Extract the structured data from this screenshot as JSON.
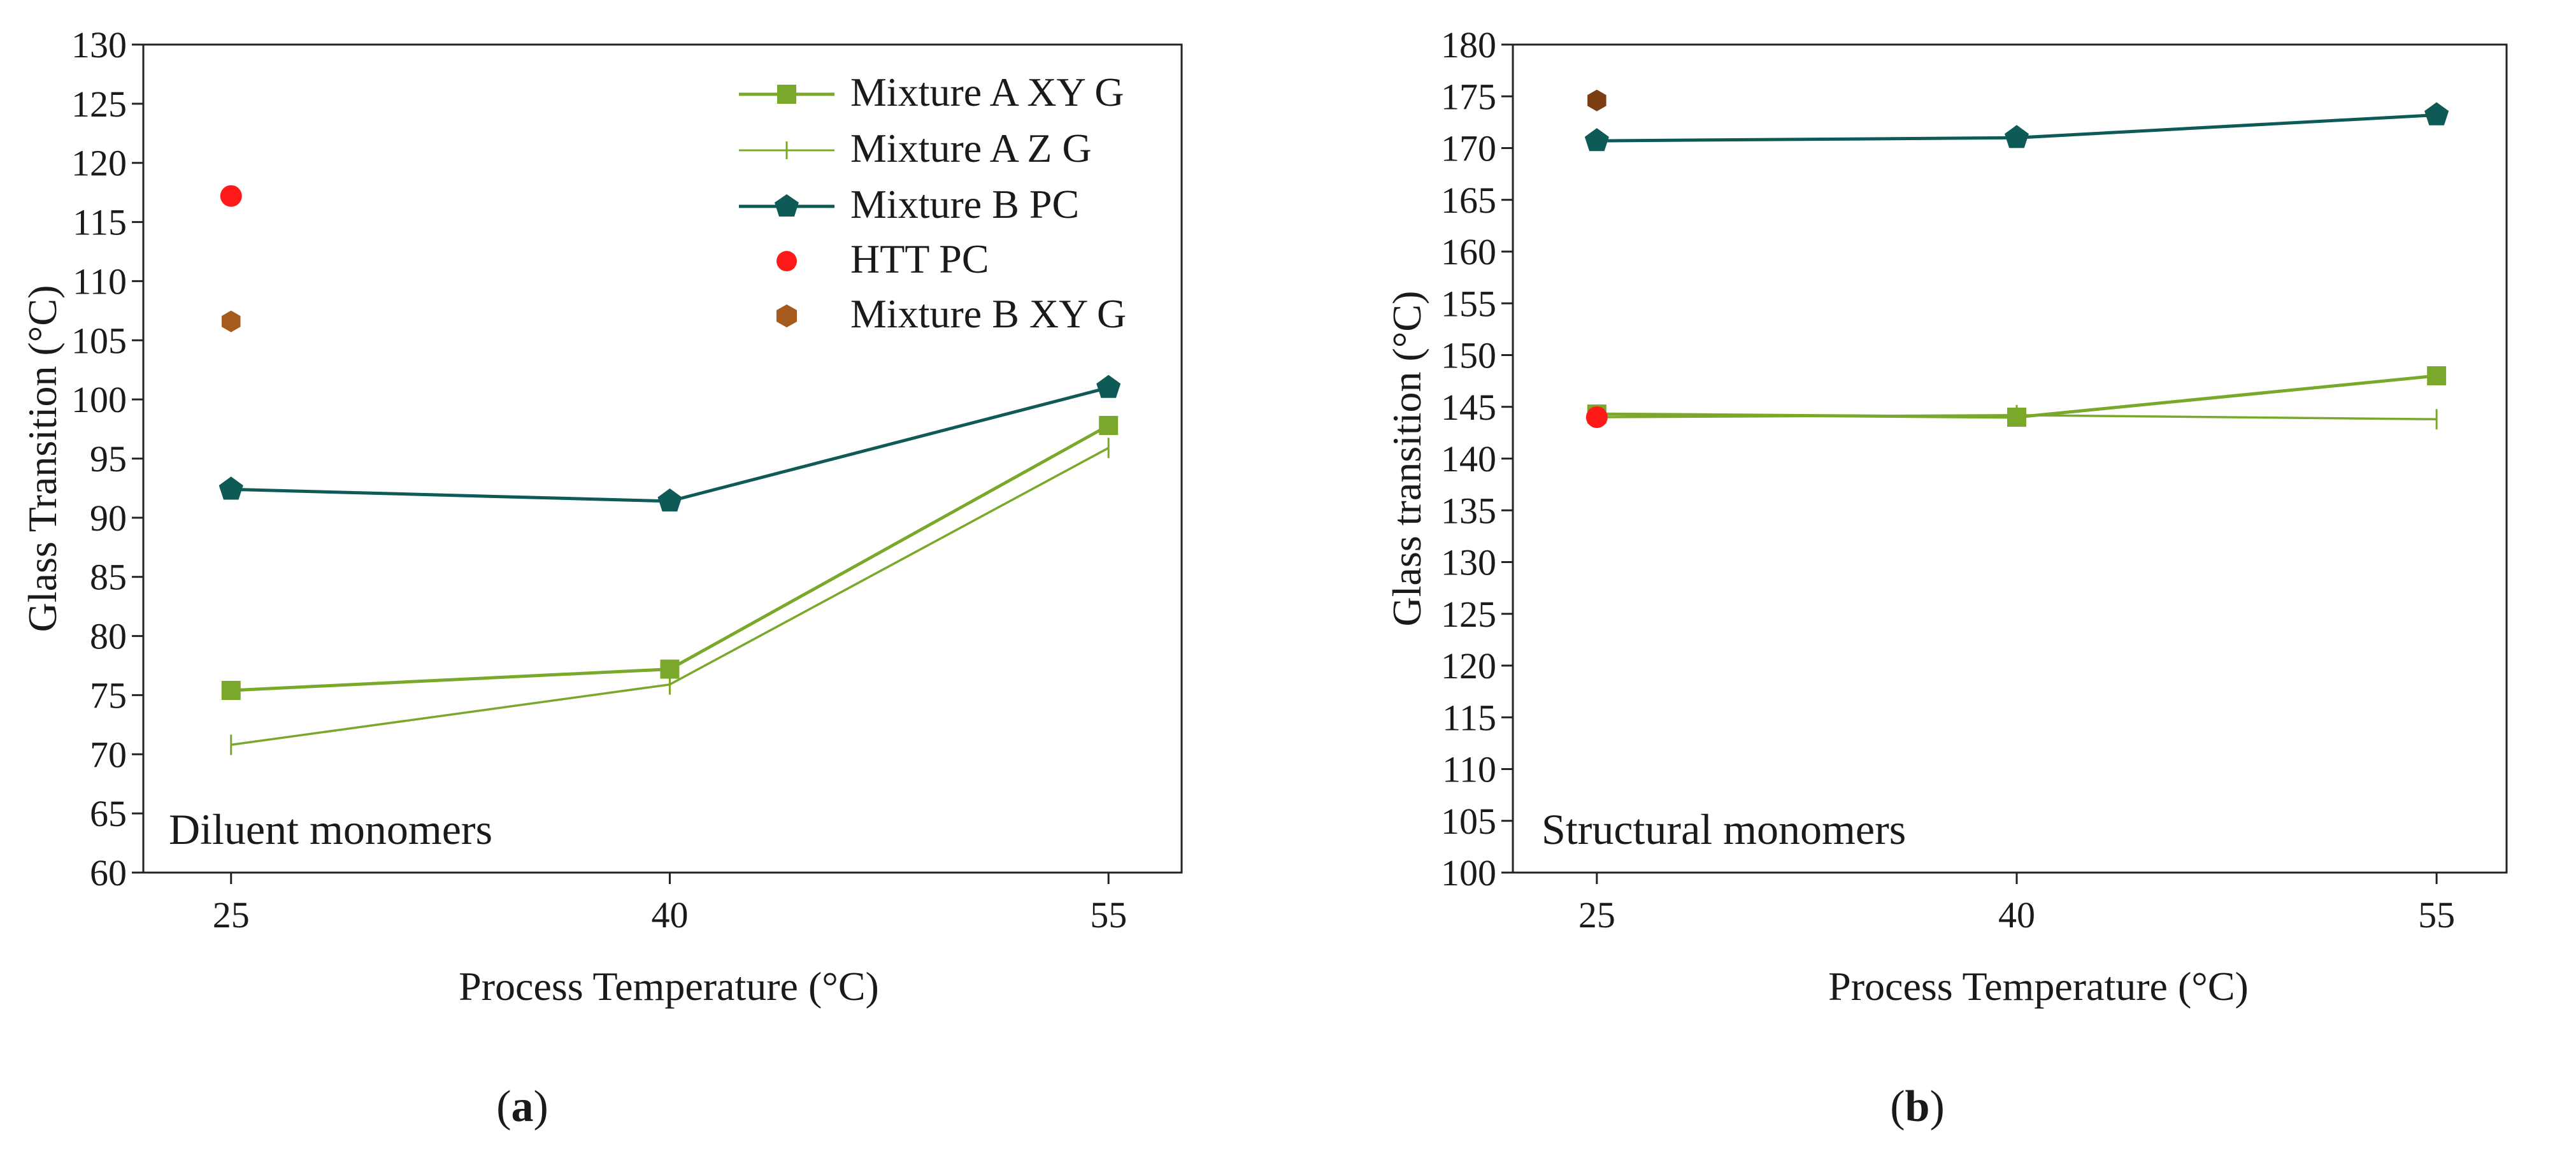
{
  "figure": {
    "panels": [
      {
        "label": "a"
      },
      {
        "label": "b"
      }
    ]
  },
  "colors": {
    "mixture_a_xy_g": "#79A82A",
    "mixture_a_z_g": "#79A82A",
    "mixture_b_pc": "#0E5A57",
    "htt_pc": "#FF1A1A",
    "mixture_b_xy_g": "#A55A1E",
    "mixture_b_xy_g_panel_b": "#7A3E12",
    "axis": "#222222"
  },
  "chart_data": [
    {
      "type": "line",
      "panel": "a",
      "annotation": "Diluent monomers",
      "xlabel": "Process Temperature (°C)",
      "ylabel": "Glass Transition (°C)",
      "categories": [
        "25",
        "40",
        "55"
      ],
      "x": [
        25,
        40,
        55
      ],
      "xlim": [
        22,
        57.5
      ],
      "ylim": [
        60,
        130
      ],
      "yticks": [
        60,
        65,
        70,
        75,
        80,
        85,
        90,
        95,
        100,
        105,
        110,
        115,
        120,
        125,
        130
      ],
      "grid": false,
      "legend_position": "top-right",
      "series": [
        {
          "name": "Mixture A XY G",
          "key": "mixture_a_xy_g",
          "marker": "square",
          "line": true,
          "x": [
            25,
            40,
            55
          ],
          "values": [
            75.4,
            77.2,
            97.8
          ]
        },
        {
          "name": "Mixture A Z G",
          "key": "mixture_a_z_g",
          "marker": "tick",
          "line": true,
          "x": [
            25,
            40,
            55
          ],
          "values": [
            70.8,
            75.9,
            95.9
          ]
        },
        {
          "name": "Mixture B PC",
          "key": "mixture_b_pc",
          "marker": "pentagon",
          "line": true,
          "x": [
            25,
            40,
            55
          ],
          "values": [
            92.4,
            91.4,
            101.0
          ]
        },
        {
          "name": "HTT PC",
          "key": "htt_pc",
          "marker": "circle",
          "line": false,
          "x": [
            25
          ],
          "values": [
            117.2
          ]
        },
        {
          "name": "Mixture B XY G",
          "key": "mixture_b_xy_g",
          "marker": "hexagon",
          "line": false,
          "x": [
            25
          ],
          "values": [
            106.6
          ]
        }
      ]
    },
    {
      "type": "line",
      "panel": "b",
      "annotation": "Structural monomers",
      "xlabel": "Process Temperature (°C)",
      "ylabel": "Glass transition (°C)",
      "categories": [
        "25",
        "40",
        "55"
      ],
      "x": [
        25,
        40,
        55
      ],
      "xlim": [
        22,
        57.5
      ],
      "ylim": [
        100,
        180
      ],
      "yticks": [
        100,
        105,
        110,
        115,
        120,
        125,
        130,
        135,
        140,
        145,
        150,
        155,
        160,
        165,
        170,
        175,
        180
      ],
      "grid": false,
      "legend_position": "none",
      "series": [
        {
          "name": "Mixture A XY G",
          "key": "mixture_a_xy_g",
          "marker": "square",
          "line": true,
          "x": [
            25,
            40,
            55
          ],
          "values": [
            144.3,
            144.0,
            148.0
          ]
        },
        {
          "name": "Mixture A Z G",
          "key": "mixture_a_z_g",
          "marker": "tick",
          "line": true,
          "x": [
            25,
            40,
            55
          ],
          "values": [
            144.0,
            144.2,
            143.8
          ]
        },
        {
          "name": "Mixture B PC",
          "key": "mixture_b_pc",
          "marker": "pentagon",
          "line": true,
          "x": [
            25,
            40,
            55
          ],
          "values": [
            170.7,
            171.0,
            173.2
          ]
        },
        {
          "name": "HTT PC",
          "key": "htt_pc",
          "marker": "circle",
          "line": false,
          "x": [
            25
          ],
          "values": [
            144.0
          ]
        },
        {
          "name": "Mixture B XY G",
          "key": "mixture_b_xy_g_panel_b",
          "marker": "hexagon",
          "line": false,
          "x": [
            25
          ],
          "values": [
            174.6
          ]
        }
      ]
    }
  ]
}
